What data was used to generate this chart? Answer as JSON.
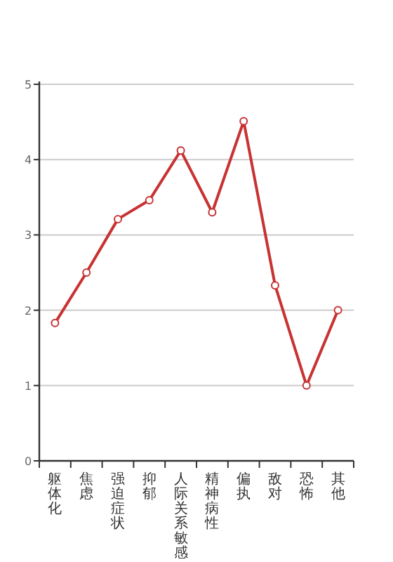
{
  "chart_data": {
    "type": "line",
    "categories": [
      "躯体化",
      "焦虑",
      "强迫症状",
      "抑郁",
      "人际关系敏感",
      "精神病性",
      "偏执",
      "敌对",
      "恐怖",
      "其他"
    ],
    "values": [
      1.83,
      2.5,
      3.21,
      3.46,
      4.12,
      3.3,
      4.51,
      2.33,
      1.0,
      2.0
    ],
    "color": "#c83232",
    "ylim": [
      0,
      5
    ],
    "yticks": [
      0,
      1,
      2,
      3,
      4,
      5
    ],
    "grid": "y",
    "marker": "circle"
  }
}
